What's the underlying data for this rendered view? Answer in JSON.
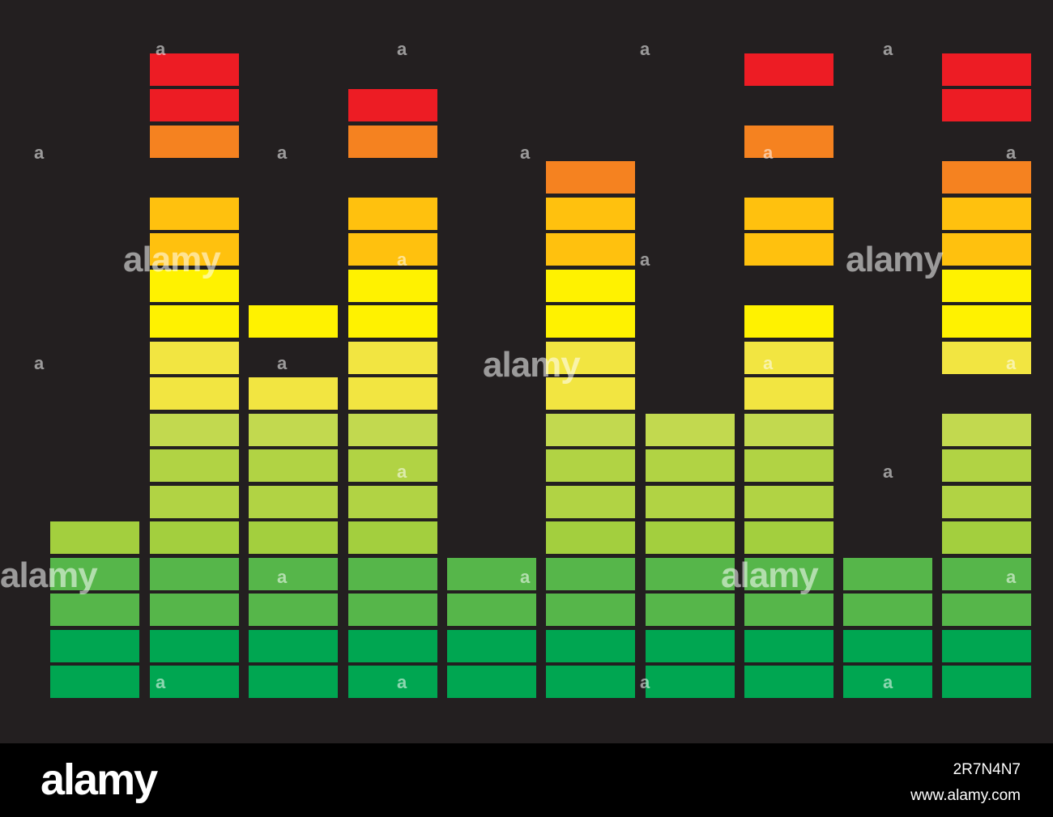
{
  "colors": {
    "background": "#231f20",
    "footer_background": "#000000",
    "segment_scale_bottom_to_top": [
      "#00a651",
      "#00a651",
      "#56b64a",
      "#56b64a",
      "#a3cf3e",
      "#b1d344",
      "#b1d344",
      "#c2d94f",
      "#f2e541",
      "#f2e541",
      "#fff200",
      "#fff200",
      "#ffc10e",
      "#ffc10e",
      "#f58220",
      "#f58220",
      "#ed1c24",
      "#ed1c24"
    ]
  },
  "equalizer": {
    "segment_count": 18,
    "columns": [
      {
        "lit": [
          1,
          2,
          3,
          4,
          5
        ]
      },
      {
        "lit": [
          1,
          2,
          3,
          4,
          5,
          6,
          7,
          8,
          9,
          10,
          11,
          12,
          13,
          14,
          16,
          17,
          18
        ]
      },
      {
        "lit": [
          1,
          2,
          3,
          4,
          5,
          6,
          7,
          8,
          9,
          11
        ]
      },
      {
        "lit": [
          1,
          2,
          3,
          4,
          5,
          6,
          7,
          8,
          9,
          10,
          11,
          12,
          13,
          14,
          16,
          17
        ]
      },
      {
        "lit": [
          1,
          2,
          3,
          4
        ]
      },
      {
        "lit": [
          1,
          2,
          3,
          4,
          5,
          6,
          7,
          8,
          9,
          10,
          11,
          12,
          13,
          14,
          15
        ]
      },
      {
        "lit": [
          1,
          2,
          3,
          4,
          5,
          6,
          7,
          8
        ]
      },
      {
        "lit": [
          1,
          2,
          3,
          4,
          5,
          6,
          7,
          8,
          9,
          10,
          11,
          13,
          14,
          16,
          18
        ]
      },
      {
        "lit": [
          1,
          2,
          3,
          4
        ]
      },
      {
        "lit": [
          1,
          2,
          3,
          4,
          5,
          6,
          7,
          8,
          10,
          11,
          12,
          13,
          14,
          15,
          17,
          18
        ]
      }
    ]
  },
  "watermark": {
    "text": "alamy",
    "glyph": "a"
  },
  "footer": {
    "logo": "alamy",
    "image_id": "2R7N4N7",
    "url": "www.alamy.com"
  }
}
